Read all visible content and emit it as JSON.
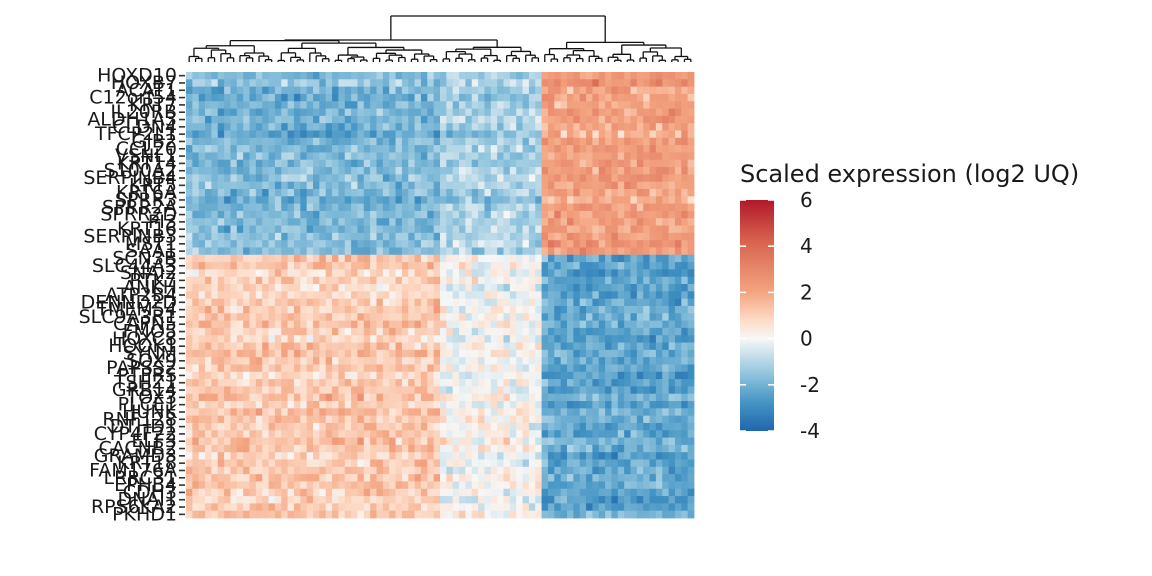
{
  "chart_data": {
    "type": "heatmap",
    "title": "",
    "xlabel": "",
    "ylabel": "",
    "row_labels": [
      "HOXD10",
      "HOXB7",
      "ACAT1",
      "C12orf54",
      "KRT7",
      "IL20RB",
      "ALDH1A3",
      "CLDN4",
      "TFCP2L1",
      "GJB2",
      "CCL20",
      "VSNL1",
      "KRT14",
      "S100A2",
      "SERPINB4",
      "KRT5",
      "KRT6A",
      "SPRR3",
      "SPRR2A",
      "SPRR2D",
      "PI3",
      "KRT16",
      "SERPINB3",
      "MST1",
      "SAA1",
      "SCN3B",
      "SLC44A3",
      "SNAI2",
      "PTK7",
      "ANKH",
      "ATP2B4",
      "DENND2D",
      "TMEM54",
      "SLC9A3R1",
      "CAPN5",
      "FMO5",
      "HOXC8",
      "HOOK1",
      "SYNM",
      "SOX9",
      "PAPSS2",
      "PTPRS",
      "TSHZ1",
      "GRB14",
      "TOX3",
      "PLCE1",
      "HUNK",
      "RNF128",
      "DTHD1",
      "CYP4F22",
      "ELF3",
      "CACNB2",
      "GRAMD3",
      "KRT18",
      "FAM176A",
      "LRRC31",
      "EPHB4",
      "CDH3",
      "DNAI1",
      "RPS6KA2",
      "PKHD1"
    ],
    "row_label_tick_count": 61,
    "column_count": 80,
    "column_dendrogram": true,
    "row_dendrogram": false,
    "row_blocks": [
      {
        "rows": "1-25",
        "left_cluster": "low",
        "middle_cluster": "low-mixed",
        "right_cluster": "high"
      },
      {
        "rows": "26-61",
        "left_cluster": "high",
        "middle_cluster": "mixed",
        "right_cluster": "low"
      }
    ],
    "column_clusters": {
      "left": 40,
      "middle": 16,
      "right": 24
    },
    "value_range": [
      -4,
      6
    ],
    "legend": {
      "title": "Scaled expression (log2 UQ)",
      "ticks": [
        6,
        4,
        2,
        0,
        -2,
        -4
      ],
      "tick_labels": [
        "6",
        "4",
        "2",
        "0",
        "-2",
        "-4"
      ],
      "colors": [
        "#2166ac",
        "#4393c3",
        "#92c5de",
        "#f7f7f7",
        "#fddbc7",
        "#f4a582",
        "#d6604d",
        "#b2182b"
      ],
      "placement": "right"
    }
  }
}
